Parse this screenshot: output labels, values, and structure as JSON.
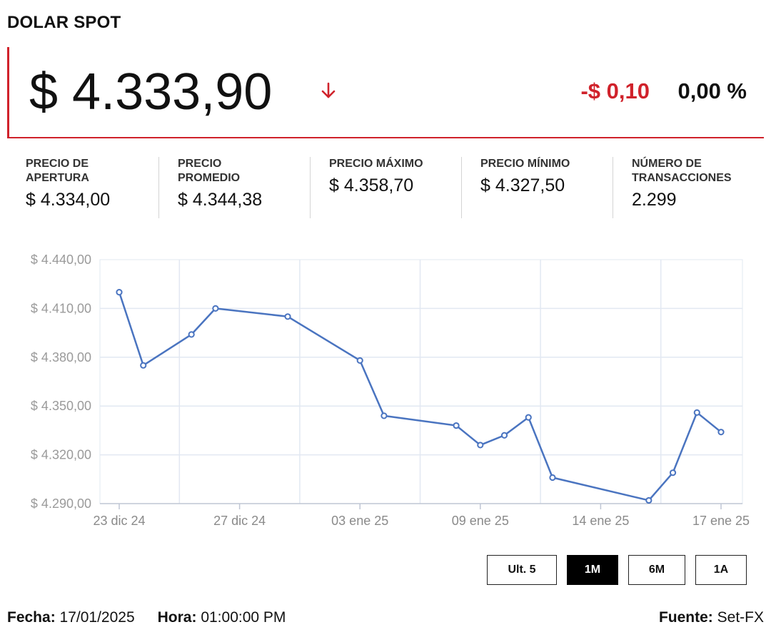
{
  "title": "DOLAR SPOT",
  "price": "$ 4.333,90",
  "trend_icon": "arrow-down-icon",
  "change": "-$ 0,10",
  "change_pct": "0,00 %",
  "colors": {
    "accent": "#d0222b",
    "line": "#4a74c0",
    "grid": "#e2e8f2"
  },
  "stats": [
    {
      "label_lines": [
        "PRECIO DE",
        "APERTURA"
      ],
      "value": "$ 4.334,00"
    },
    {
      "label_lines": [
        "PRECIO",
        "PROMEDIO"
      ],
      "value": "$ 4.344,38"
    },
    {
      "label_lines": [
        "PRECIO MÁXIMO"
      ],
      "value": "$ 4.358,70"
    },
    {
      "label_lines": [
        "PRECIO MÍNIMO"
      ],
      "value": "$ 4.327,50"
    },
    {
      "label_lines": [
        "NÚMERO DE",
        "TRANSACCIONES"
      ],
      "value": "2.299"
    }
  ],
  "chart_data": {
    "type": "line",
    "x_tick_labels": [
      "23 dic 24",
      "27 dic 24",
      "03 ene 25",
      "09 ene 25",
      "14 ene 25",
      "17 ene 25"
    ],
    "y_tick_labels": [
      "$ 4.440,00",
      "$ 4.410,00",
      "$ 4.380,00",
      "$ 4.350,00",
      "$ 4.320,00",
      "$ 4.290,00"
    ],
    "ylim": [
      4290,
      4440
    ],
    "x_range": [
      "2024-12-23",
      "2025-01-17"
    ],
    "grid": true,
    "series": [
      {
        "points": [
          {
            "x": "2024-12-23",
            "y": 4420
          },
          {
            "x": "2024-12-24",
            "y": 4375
          },
          {
            "x": "2024-12-26",
            "y": 4394
          },
          {
            "x": "2024-12-27",
            "y": 4410
          },
          {
            "x": "2024-12-30",
            "y": 4405
          },
          {
            "x": "2025-01-02",
            "y": 4378
          },
          {
            "x": "2025-01-03",
            "y": 4344
          },
          {
            "x": "2025-01-06",
            "y": 4338
          },
          {
            "x": "2025-01-07",
            "y": 4326
          },
          {
            "x": "2025-01-08",
            "y": 4332
          },
          {
            "x": "2025-01-09",
            "y": 4343
          },
          {
            "x": "2025-01-10",
            "y": 4306
          },
          {
            "x": "2025-01-14",
            "y": 4292
          },
          {
            "x": "2025-01-15",
            "y": 4309
          },
          {
            "x": "2025-01-16",
            "y": 4346
          },
          {
            "x": "2025-01-17",
            "y": 4334
          }
        ]
      }
    ]
  },
  "ranges": [
    {
      "label": "Ult. 5",
      "active": false
    },
    {
      "label": "1M",
      "active": true
    },
    {
      "label": "6M",
      "active": false
    },
    {
      "label": "1A",
      "active": false
    }
  ],
  "footer": {
    "date_label": "Fecha:",
    "date_value": "17/01/2025",
    "time_label": "Hora:",
    "time_value": "01:00:00 PM",
    "source_label": "Fuente:",
    "source_value": "Set-FX"
  }
}
